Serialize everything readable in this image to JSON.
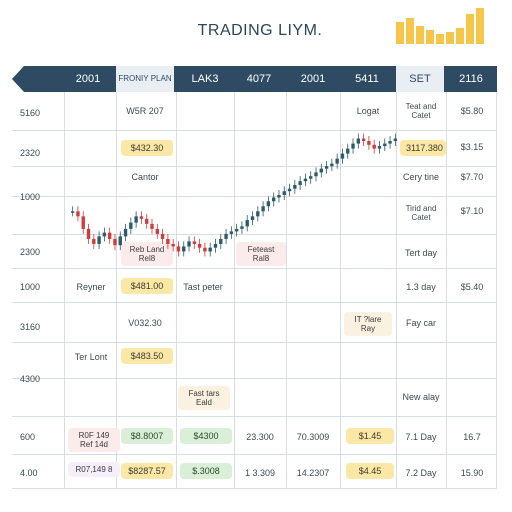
{
  "title": "TRADING LIYM.",
  "header": {
    "cols": [
      "2001",
      "FRONIY PLAN",
      "LAK3",
      "4077",
      "2001",
      "5411",
      "SET",
      "2116"
    ]
  },
  "rows": [
    {
      "label": "5160",
      "cells": {
        "c1": "W5R 207",
        "c5": "Logat",
        "c6": "Teat and Catet",
        "c7": "$5.80"
      }
    },
    {
      "label": "2320",
      "cells": {
        "c1": "$432.30",
        "c6": "3117.380",
        "c7": "$3.15"
      }
    },
    {
      "label": "",
      "cells": {
        "c1": "Cantor",
        "c6": "Cery tine",
        "c7": "$7.70"
      }
    },
    {
      "label": "1000",
      "cells": {
        "c6": "Tirid and Catet",
        "c7": "$7.10"
      }
    },
    {
      "label": "2300",
      "cells": {
        "c1": "Reb Land Rel8",
        "c3": "Feteast Ral8",
        "c6": "Tert day"
      }
    },
    {
      "label": "1000",
      "cells": {
        "c0": "Reyner",
        "c1": "$481.00",
        "c2": "Tast peter",
        "c6": "1.3 day",
        "c7": "$5.40"
      }
    },
    {
      "label": "3160",
      "cells": {
        "c1": "V032.30",
        "c5": "IT ?lare Ray",
        "c6": "Fay car"
      }
    },
    {
      "label": "",
      "cells": {
        "c0": "Ter Lont",
        "c1": "$483.50"
      }
    },
    {
      "label": "4300",
      "cells": {
        "c2": "Fast tars Eald",
        "c6": "New alay"
      }
    },
    {
      "label": "600",
      "cells": {
        "c0": "R0F 149 Ref 14d",
        "c1": "$8.8007",
        "c2": "$4300",
        "c3": "23.300",
        "c4": "70.3009",
        "c5": "$1.45",
        "c6": "7.1 Day",
        "c7": "16.7"
      }
    },
    {
      "label": "4.00",
      "cells": {
        "c0": "R07,149 8",
        "c1": "$8287.57",
        "c2": "$.3008",
        "c3": "1 3.309",
        "c4": "14.2307",
        "c5": "$4.45",
        "c6": "7.2 Day",
        "c7": "15.90"
      }
    }
  ],
  "chart_data": {
    "type": "candlestick",
    "series": [
      {
        "values": [
          62,
          58,
          48,
          40,
          36,
          42,
          45,
          40,
          35,
          42,
          48,
          53,
          58,
          56,
          52,
          48,
          44,
          40,
          36,
          34,
          30,
          34,
          38,
          36,
          33,
          30,
          33,
          36,
          40,
          44,
          46,
          48,
          50,
          55,
          58,
          62,
          66,
          70,
          73,
          75,
          78,
          80,
          83,
          86,
          88,
          90,
          93,
          96,
          98,
          100,
          104,
          108,
          112,
          116,
          120,
          118,
          115,
          112,
          114,
          116,
          118,
          120
        ]
      }
    ],
    "up_color": "#2d5b6b",
    "down_color": "#d23b3b"
  },
  "colors": {
    "header": "#2f4b63",
    "accent": "#f2b81e"
  }
}
